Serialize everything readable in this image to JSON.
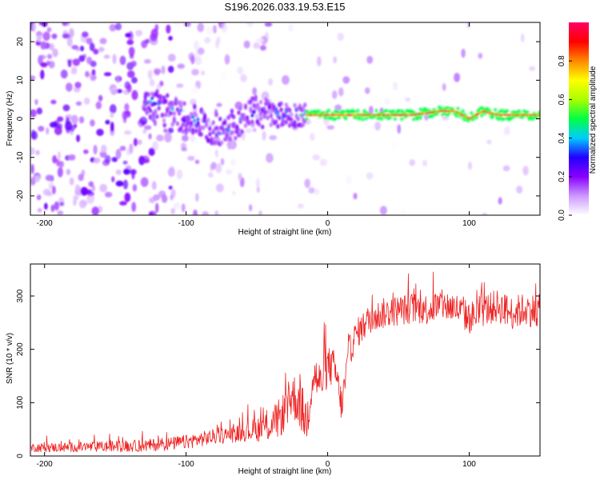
{
  "title": "S196.2026.033.19.53.E15",
  "colors": {
    "line": "#ee2222",
    "background": "#ffffff",
    "colorbar_stops": [
      "#ffffff",
      "#cc99ff",
      "#8800ff",
      "#2200ff",
      "#00ccff",
      "#00ff44",
      "#aaff00",
      "#ffff00",
      "#ff8800",
      "#ff0000",
      "#ff0066"
    ]
  },
  "chart_data": [
    {
      "type": "heatmap",
      "xlabel": "Height of straight line (km)",
      "ylabel": "Frequency (Hz)",
      "xlim": [
        -210,
        150
      ],
      "ylim": [
        -25,
        25
      ],
      "xticks": [
        -200,
        -100,
        0,
        100
      ],
      "xtick_labels": [
        "-200",
        "-100",
        "0",
        "100"
      ],
      "yticks": [
        -20,
        -10,
        0,
        10,
        20
      ],
      "ytick_labels": [
        "-20",
        "-10",
        "0",
        "10",
        "20"
      ],
      "description_points": {
        "ridge_x": [
          -125,
          -115,
          -100,
          -90,
          -80,
          -70,
          -60,
          -50,
          -40,
          -30,
          -20,
          -10,
          0,
          10,
          20,
          40,
          60,
          80,
          90,
          100,
          110,
          120,
          130,
          150
        ],
        "ridge_freq": [
          4,
          3,
          0,
          -1,
          -3,
          -2,
          0,
          2,
          1,
          1,
          1,
          1,
          1,
          1,
          1,
          1,
          1,
          2,
          2,
          0,
          2,
          1,
          1,
          1
        ]
      },
      "colorbar": {
        "label": "Normalized spectral amplitude",
        "range": [
          0.0,
          1.0
        ],
        "ticks": [
          0.0,
          0.2,
          0.4,
          0.6,
          0.8
        ],
        "tick_labels": [
          "0.0",
          "0.2",
          "0.4",
          "0.6",
          "0.8"
        ]
      }
    },
    {
      "type": "line",
      "xlabel": "Height of straight line (km)",
      "ylabel": "SNR (10 * v/v)",
      "xlim": [
        -210,
        150
      ],
      "ylim": [
        0,
        360
      ],
      "xticks": [
        -200,
        -100,
        0,
        100
      ],
      "xtick_labels": [
        "-200",
        "-100",
        "0",
        "100"
      ],
      "yticks": [
        0,
        100,
        200,
        300
      ],
      "ytick_labels": [
        "0",
        "100",
        "200",
        "300"
      ],
      "series": [
        {
          "name": "SNR",
          "x": [
            -210,
            -190,
            -170,
            -150,
            -130,
            -110,
            -100,
            -90,
            -80,
            -70,
            -60,
            -50,
            -40,
            -35,
            -30,
            -25,
            -20,
            -15,
            -10,
            -5,
            0,
            5,
            10,
            15,
            20,
            25,
            30,
            40,
            50,
            60,
            70,
            80,
            90,
            100,
            110,
            120,
            130,
            140,
            150
          ],
          "values": [
            15,
            15,
            16,
            17,
            18,
            22,
            25,
            30,
            35,
            38,
            42,
            48,
            55,
            65,
            80,
            110,
            95,
            60,
            150,
            130,
            165,
            160,
            90,
            190,
            225,
            240,
            255,
            265,
            270,
            275,
            272,
            280,
            275,
            255,
            270,
            278,
            265,
            272,
            268
          ]
        }
      ],
      "noise": {
        "x": [
          -210,
          -120,
          -60,
          -20,
          20,
          150
        ],
        "amplitude": [
          10,
          15,
          20,
          60,
          35,
          40
        ]
      }
    }
  ]
}
